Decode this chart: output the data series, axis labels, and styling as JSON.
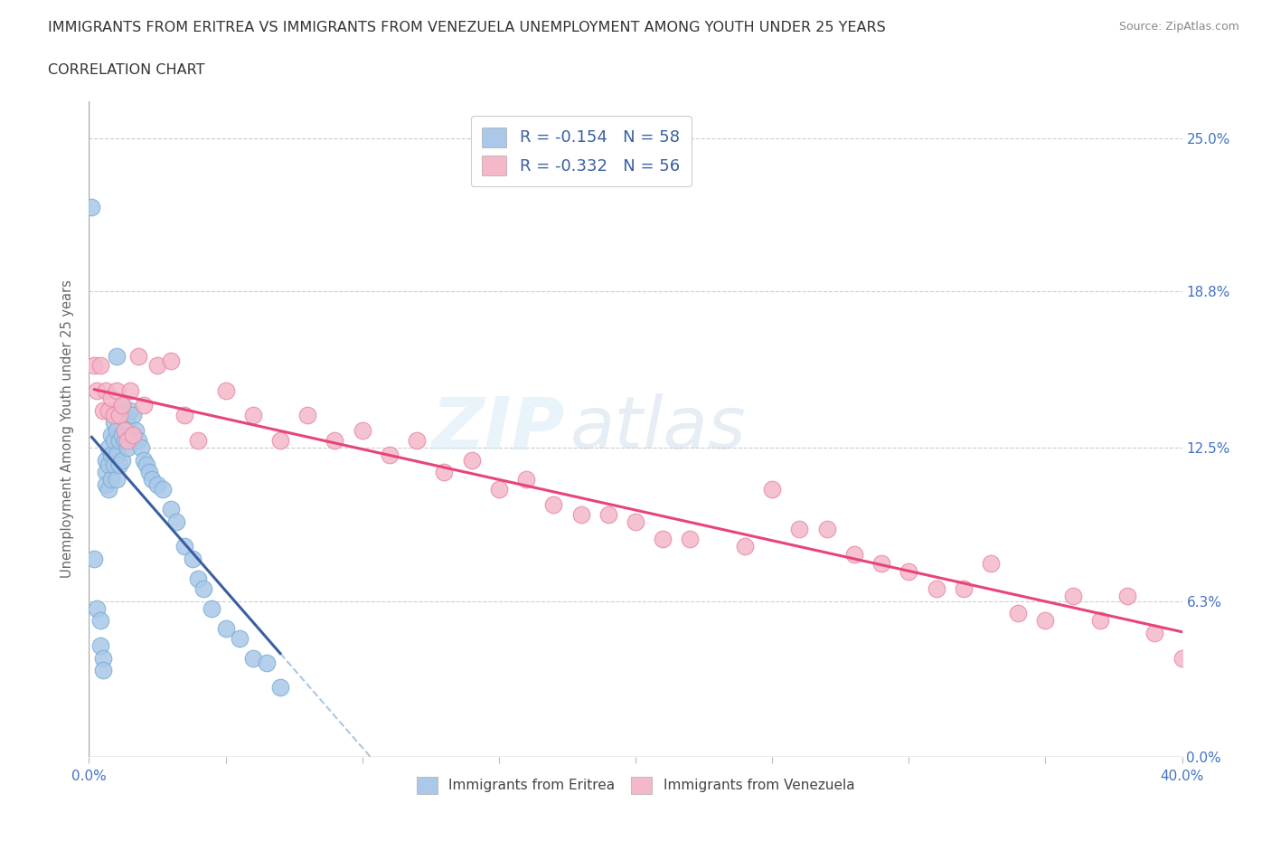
{
  "title_line1": "IMMIGRANTS FROM ERITREA VS IMMIGRANTS FROM VENEZUELA UNEMPLOYMENT AMONG YOUTH UNDER 25 YEARS",
  "title_line2": "CORRELATION CHART",
  "source": "Source: ZipAtlas.com",
  "ylabel": "Unemployment Among Youth under 25 years",
  "xlim": [
    0.0,
    0.4
  ],
  "ylim": [
    0.0,
    0.265
  ],
  "xticks": [
    0.0,
    0.05,
    0.1,
    0.15,
    0.2,
    0.25,
    0.3,
    0.35,
    0.4
  ],
  "ytick_labels_right": [
    "0.0%",
    "6.3%",
    "12.5%",
    "18.8%",
    "25.0%"
  ],
  "yticks_right": [
    0.0,
    0.063,
    0.125,
    0.188,
    0.25
  ],
  "gridline_color": "#cccccc",
  "background_color": "#ffffff",
  "eritrea_color": "#aac8e8",
  "eritrea_edge": "#7aafd4",
  "eritrea_line_color": "#3a5fa0",
  "eritrea_dash_color": "#8ab0d8",
  "venezuela_color": "#f4b8c8",
  "venezuela_edge": "#e888a8",
  "venezuela_line_color": "#e8447a",
  "legend_R_eritrea": "R = -0.154",
  "legend_N_eritrea": "N = 58",
  "legend_R_venezuela": "R = -0.332",
  "legend_N_venezuela": "N = 56",
  "eritrea_x": [
    0.001,
    0.002,
    0.003,
    0.004,
    0.004,
    0.005,
    0.005,
    0.006,
    0.006,
    0.006,
    0.007,
    0.007,
    0.007,
    0.008,
    0.008,
    0.008,
    0.009,
    0.009,
    0.009,
    0.01,
    0.01,
    0.01,
    0.01,
    0.011,
    0.011,
    0.011,
    0.012,
    0.012,
    0.012,
    0.013,
    0.013,
    0.014,
    0.014,
    0.015,
    0.015,
    0.016,
    0.017,
    0.018,
    0.019,
    0.02,
    0.021,
    0.022,
    0.023,
    0.025,
    0.027,
    0.03,
    0.032,
    0.035,
    0.038,
    0.04,
    0.042,
    0.045,
    0.05,
    0.055,
    0.06,
    0.065,
    0.07,
    0.01
  ],
  "eritrea_y": [
    0.222,
    0.08,
    0.06,
    0.055,
    0.045,
    0.04,
    0.035,
    0.12,
    0.115,
    0.11,
    0.125,
    0.118,
    0.108,
    0.13,
    0.122,
    0.112,
    0.135,
    0.128,
    0.118,
    0.14,
    0.132,
    0.122,
    0.112,
    0.138,
    0.128,
    0.118,
    0.142,
    0.13,
    0.12,
    0.138,
    0.128,
    0.135,
    0.125,
    0.14,
    0.13,
    0.138,
    0.132,
    0.128,
    0.125,
    0.12,
    0.118,
    0.115,
    0.112,
    0.11,
    0.108,
    0.1,
    0.095,
    0.085,
    0.08,
    0.072,
    0.068,
    0.06,
    0.052,
    0.048,
    0.04,
    0.038,
    0.028,
    0.162
  ],
  "venezuela_x": [
    0.002,
    0.003,
    0.004,
    0.005,
    0.006,
    0.007,
    0.008,
    0.009,
    0.01,
    0.011,
    0.012,
    0.013,
    0.014,
    0.015,
    0.016,
    0.018,
    0.02,
    0.025,
    0.03,
    0.035,
    0.04,
    0.05,
    0.06,
    0.07,
    0.08,
    0.09,
    0.1,
    0.11,
    0.12,
    0.13,
    0.14,
    0.15,
    0.16,
    0.17,
    0.18,
    0.19,
    0.2,
    0.21,
    0.22,
    0.24,
    0.25,
    0.26,
    0.27,
    0.28,
    0.29,
    0.3,
    0.31,
    0.32,
    0.33,
    0.34,
    0.35,
    0.36,
    0.37,
    0.38,
    0.39,
    0.4
  ],
  "venezuela_y": [
    0.158,
    0.148,
    0.158,
    0.14,
    0.148,
    0.14,
    0.145,
    0.138,
    0.148,
    0.138,
    0.142,
    0.132,
    0.128,
    0.148,
    0.13,
    0.162,
    0.142,
    0.158,
    0.16,
    0.138,
    0.128,
    0.148,
    0.138,
    0.128,
    0.138,
    0.128,
    0.132,
    0.122,
    0.128,
    0.115,
    0.12,
    0.108,
    0.112,
    0.102,
    0.098,
    0.098,
    0.095,
    0.088,
    0.088,
    0.085,
    0.108,
    0.092,
    0.092,
    0.082,
    0.078,
    0.075,
    0.068,
    0.068,
    0.078,
    0.058,
    0.055,
    0.065,
    0.055,
    0.065,
    0.05,
    0.04
  ]
}
